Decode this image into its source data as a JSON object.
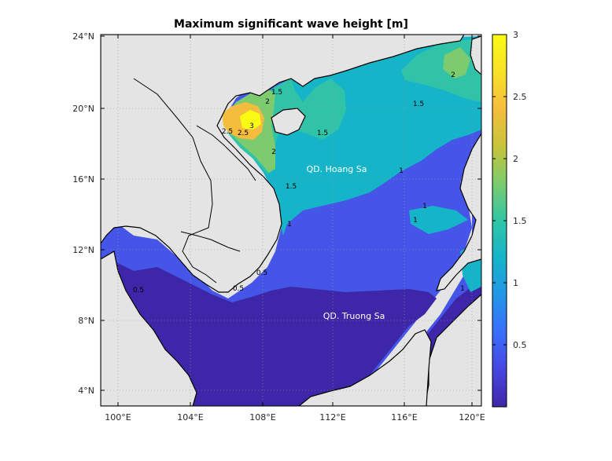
{
  "title": "Maximum significant wave height [m]",
  "map": {
    "lon_range": [
      99.2,
      120.6
    ],
    "lat_range": [
      3.2,
      24.2
    ],
    "lon_ticks": [
      "100°E",
      "104°E",
      "108°E",
      "112°E",
      "116°E",
      "120°E"
    ],
    "lat_ticks": [
      "4°N",
      "8°N",
      "12°N",
      "16°N",
      "20°N",
      "24°N"
    ],
    "place_labels": [
      "QD. Hoang Sa",
      "QD. Truong Sa"
    ],
    "contour_labels": [
      "3",
      "2.5",
      "2",
      "2",
      "1.5",
      "1.5",
      "1.5",
      "1.5",
      "1",
      "1",
      "1",
      "1",
      "0.5",
      "0.5",
      "0.5",
      "1",
      "2.5",
      "2"
    ]
  },
  "colorbar": {
    "ticks": [
      "3",
      "2.5",
      "2",
      "1.5",
      "1",
      "0.5"
    ],
    "range": [
      0,
      3
    ],
    "colors": [
      "#3e26a8",
      "#4746e0",
      "#3a6efc",
      "#2396e8",
      "#16b4c8",
      "#30c6a6",
      "#7ccb6f",
      "#c7c43a",
      "#f5bd3d",
      "#f8e129",
      "#f9fb14"
    ]
  },
  "colors": {
    "land": "#e4e4e4",
    "lvl_0": "#3e26a8",
    "lvl_05": "#4555e8",
    "lvl_1": "#16b4c8",
    "lvl_15": "#30c3a8",
    "lvl_2": "#7ccb6f",
    "lvl_25": "#f5bd3d",
    "lvl_3": "#f9fb14"
  }
}
